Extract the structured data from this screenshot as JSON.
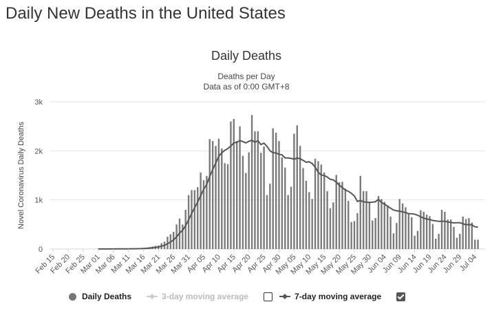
{
  "page": {
    "title": "Daily New Deaths in the United States"
  },
  "legend": {
    "daily": "Daily Deaths",
    "ma3": "3-day moving average",
    "ma3_checked": false,
    "ma7": "7-day moving average",
    "ma7_checked": true
  },
  "chart_data": {
    "type": "bar",
    "title": "Daily Deaths",
    "subtitle": [
      "Deaths per Day",
      "Data as of 0:00 GMT+8"
    ],
    "ylabel": "Novel Coronavirus Daily Deaths",
    "xlabel": "",
    "ylim": [
      0,
      3000
    ],
    "yticks": [
      {
        "value": 0,
        "label": "0"
      },
      {
        "value": 1000,
        "label": "1k"
      },
      {
        "value": 2000,
        "label": "2k"
      },
      {
        "value": 3000,
        "label": "3k"
      }
    ],
    "grid": true,
    "legend_position": "bottom",
    "colors": {
      "bars": "#7a7a7a",
      "ma7": "#555555",
      "ma3": "#bbbbbb",
      "grid": "#e6e6e6"
    },
    "xticks": [
      "Feb 15",
      "Feb 20",
      "Feb 25",
      "Mar 01",
      "Mar 06",
      "Mar 11",
      "Mar 16",
      "Mar 21",
      "Mar 26",
      "Mar 31",
      "Apr 05",
      "Apr 10",
      "Apr 15",
      "Apr 20",
      "Apr 25",
      "Apr 30",
      "May 05",
      "May 10",
      "May 15",
      "May 20",
      "May 25",
      "May 30",
      "Jun 04",
      "Jun 09",
      "Jun 14",
      "Jun 19",
      "Jun 24",
      "Jun 29",
      "Jul 04"
    ],
    "categories": [
      "Feb 15",
      "Feb 16",
      "Feb 17",
      "Feb 18",
      "Feb 19",
      "Feb 20",
      "Feb 21",
      "Feb 22",
      "Feb 23",
      "Feb 24",
      "Feb 25",
      "Feb 26",
      "Feb 27",
      "Feb 28",
      "Feb 29",
      "Mar 01",
      "Mar 02",
      "Mar 03",
      "Mar 04",
      "Mar 05",
      "Mar 06",
      "Mar 07",
      "Mar 08",
      "Mar 09",
      "Mar 10",
      "Mar 11",
      "Mar 12",
      "Mar 13",
      "Mar 14",
      "Mar 15",
      "Mar 16",
      "Mar 17",
      "Mar 18",
      "Mar 19",
      "Mar 20",
      "Mar 21",
      "Mar 22",
      "Mar 23",
      "Mar 24",
      "Mar 25",
      "Mar 26",
      "Mar 27",
      "Mar 28",
      "Mar 29",
      "Mar 30",
      "Mar 31",
      "Apr 01",
      "Apr 02",
      "Apr 03",
      "Apr 04",
      "Apr 05",
      "Apr 06",
      "Apr 07",
      "Apr 08",
      "Apr 09",
      "Apr 10",
      "Apr 11",
      "Apr 12",
      "Apr 13",
      "Apr 14",
      "Apr 15",
      "Apr 16",
      "Apr 17",
      "Apr 18",
      "Apr 19",
      "Apr 20",
      "Apr 21",
      "Apr 22",
      "Apr 23",
      "Apr 24",
      "Apr 25",
      "Apr 26",
      "Apr 27",
      "Apr 28",
      "Apr 29",
      "Apr 30",
      "May 01",
      "May 02",
      "May 03",
      "May 04",
      "May 05",
      "May 06",
      "May 07",
      "May 08",
      "May 09",
      "May 10",
      "May 11",
      "May 12",
      "May 13",
      "May 14",
      "May 15",
      "May 16",
      "May 17",
      "May 18",
      "May 19",
      "May 20",
      "May 21",
      "May 22",
      "May 23",
      "May 24",
      "May 25",
      "May 26",
      "May 27",
      "May 28",
      "May 29",
      "May 30",
      "May 31",
      "Jun 01",
      "Jun 02",
      "Jun 03",
      "Jun 04",
      "Jun 05",
      "Jun 06",
      "Jun 07",
      "Jun 08",
      "Jun 09",
      "Jun 10",
      "Jun 11",
      "Jun 12",
      "Jun 13",
      "Jun 14",
      "Jun 15",
      "Jun 16",
      "Jun 17",
      "Jun 18",
      "Jun 19",
      "Jun 20",
      "Jun 21",
      "Jun 22",
      "Jun 23",
      "Jun 24",
      "Jun 25",
      "Jun 26",
      "Jun 27",
      "Jun 28",
      "Jun 29",
      "Jun 30",
      "Jul 01",
      "Jul 02",
      "Jul 03",
      "Jul 04",
      "Jul 05"
    ],
    "series": [
      {
        "name": "Daily Deaths",
        "values": [
          0,
          0,
          0,
          0,
          0,
          0,
          0,
          0,
          0,
          0,
          0,
          0,
          0,
          0,
          0,
          1,
          5,
          1,
          4,
          1,
          2,
          3,
          4,
          4,
          6,
          7,
          10,
          7,
          12,
          12,
          23,
          31,
          39,
          53,
          65,
          70,
          120,
          150,
          250,
          300,
          350,
          500,
          620,
          500,
          800,
          1100,
          1200,
          1200,
          1260,
          1560,
          1400,
          1490,
          2240,
          2200,
          2100,
          2250,
          2050,
          1750,
          1730,
          2600,
          2650,
          2200,
          2500,
          1900,
          1550,
          1970,
          2730,
          2400,
          2400,
          1960,
          2090,
          1100,
          1330,
          2460,
          2370,
          2200,
          1870,
          1660,
          1100,
          1270,
          2350,
          2520,
          2100,
          1650,
          1390,
          1160,
          1020,
          1840,
          1790,
          1720,
          1560,
          1180,
          830,
          950,
          1510,
          1360,
          1370,
          1230,
          980,
          550,
          570,
          730,
          1490,
          1180,
          1180,
          950,
          580,
          630,
          1080,
          1020,
          960,
          890,
          660,
          320,
          530,
          1020,
          930,
          850,
          730,
          650,
          270,
          370,
          790,
          760,
          700,
          670,
          510,
          210,
          310,
          800,
          760,
          600,
          600,
          450,
          230,
          310,
          660,
          610,
          630,
          540,
          190,
          190
        ]
      }
    ]
  }
}
